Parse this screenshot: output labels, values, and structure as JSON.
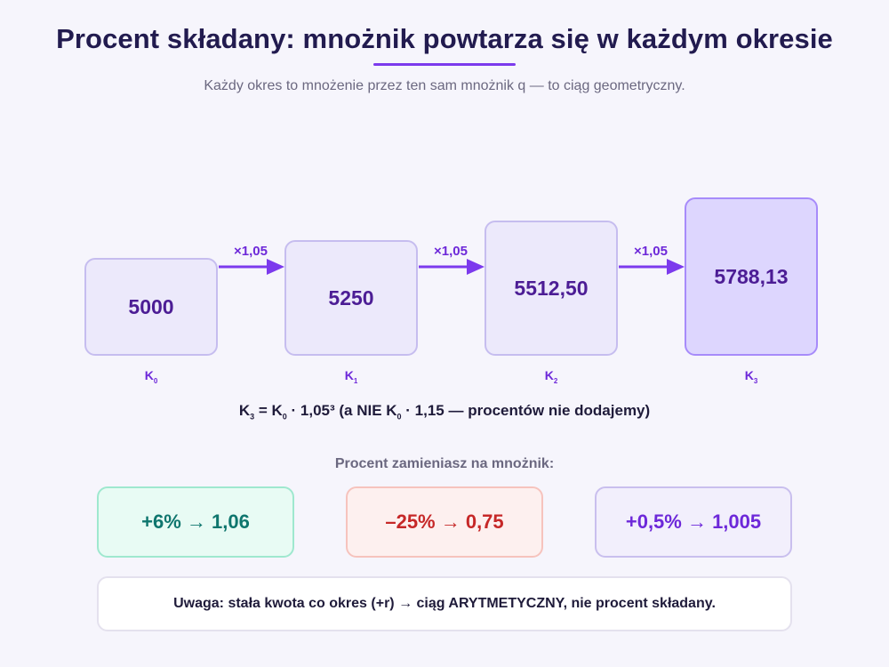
{
  "header": {
    "title": "Procent składany: mnożnik powtarza się w każdym okresie",
    "subtitle": "Każdy okres to mnożenie przez ten sam mnożnik q — to ciąg geometryczny."
  },
  "sequence": {
    "values": [
      "5000",
      "5250",
      "5512,50",
      "5788,13"
    ],
    "labels": [
      {
        "base": "K",
        "sub": "0"
      },
      {
        "base": "K",
        "sub": "1"
      },
      {
        "base": "K",
        "sub": "2"
      },
      {
        "base": "K",
        "sub": "3"
      }
    ],
    "multiplier": "×1,05"
  },
  "formula": {
    "k3": "K",
    "k3_sub": "3",
    "eq": " = K",
    "k0_sub": "0",
    "mid": " · 1,05³ (a NIE K",
    "k0b_sub": "0",
    "end": " · 1,15 — procentów nie dodajemy)"
  },
  "conversion": {
    "prompt": "Procent zamieniasz na mnożnik:",
    "items": [
      "+6% → 1,06",
      "–25% → 0,75",
      "+0,5% → 1,005"
    ]
  },
  "note": "Uwaga: stała kwota co okres (+r) → ciąg ARYTMETYCZNY, nie procent składany.",
  "colors": {
    "accent": "#7c3aed",
    "title": "#221b4f",
    "positive": "#0f766e",
    "negative": "#c62828"
  }
}
